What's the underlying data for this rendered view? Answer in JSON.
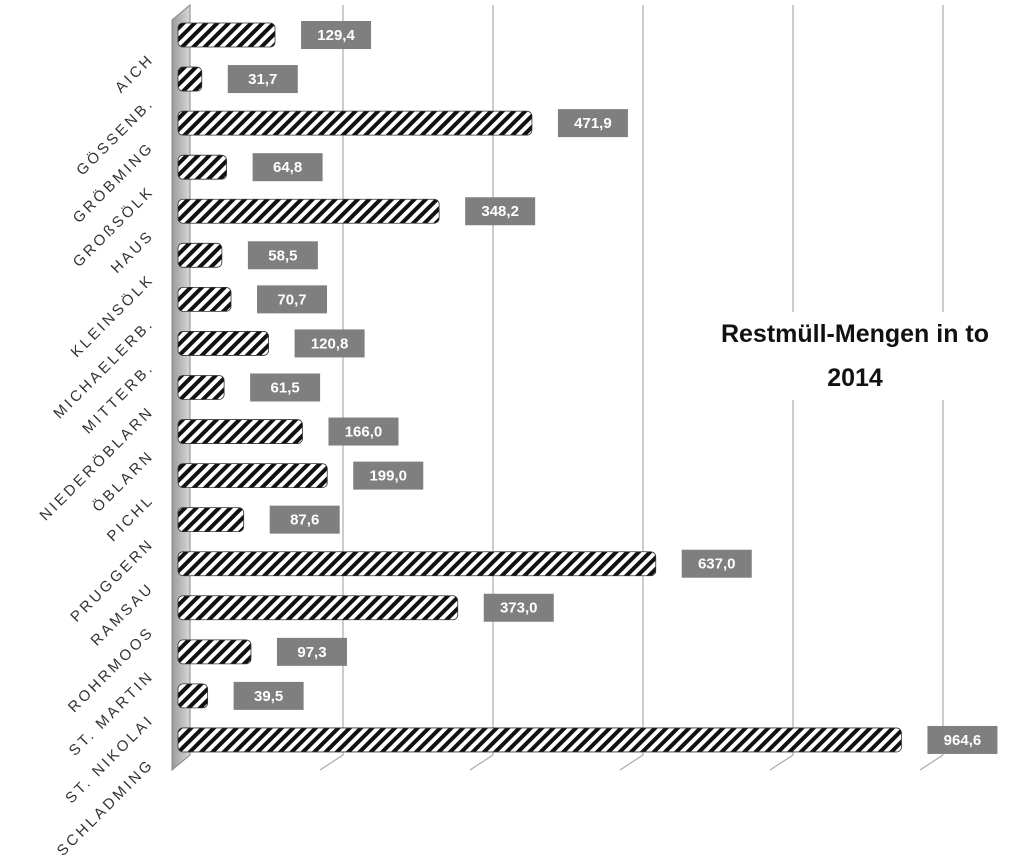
{
  "chart_data": {
    "type": "bar",
    "orientation": "horizontal",
    "title": "Restmüll-Mengen in to 2014",
    "categories": [
      "AICH",
      "GÖSSENB.",
      "GRÖBMING",
      "GROßSÖLK",
      "HAUS",
      "KLEINSÖLK",
      "MICHAELERB.",
      "MITTERB.",
      "NIEDERÖBLARN",
      "ÖBLARN",
      "PICHL",
      "PRUGGERN",
      "RAMSAU",
      "ROHRMOOS",
      "ST. MARTIN",
      "ST. NIKOLAI",
      "SCHLADMING"
    ],
    "values": [
      129.4,
      31.7,
      471.9,
      64.8,
      348.2,
      58.5,
      70.7,
      120.8,
      61.5,
      166.0,
      199.0,
      87.6,
      637.0,
      373.0,
      97.3,
      39.5,
      964.6
    ],
    "value_labels": [
      "129,4",
      "31,7",
      "471,9",
      "64,8",
      "348,2",
      "58,5",
      "70,7",
      "120,8",
      "61,5",
      "166,0",
      "199,0",
      "87,6",
      "637,0",
      "373,0",
      "97,3",
      "39,5",
      "964,6"
    ],
    "xlim": [
      0,
      1000
    ],
    "xticks": [
      0,
      200,
      400,
      600,
      800,
      1000
    ],
    "grid": true
  }
}
